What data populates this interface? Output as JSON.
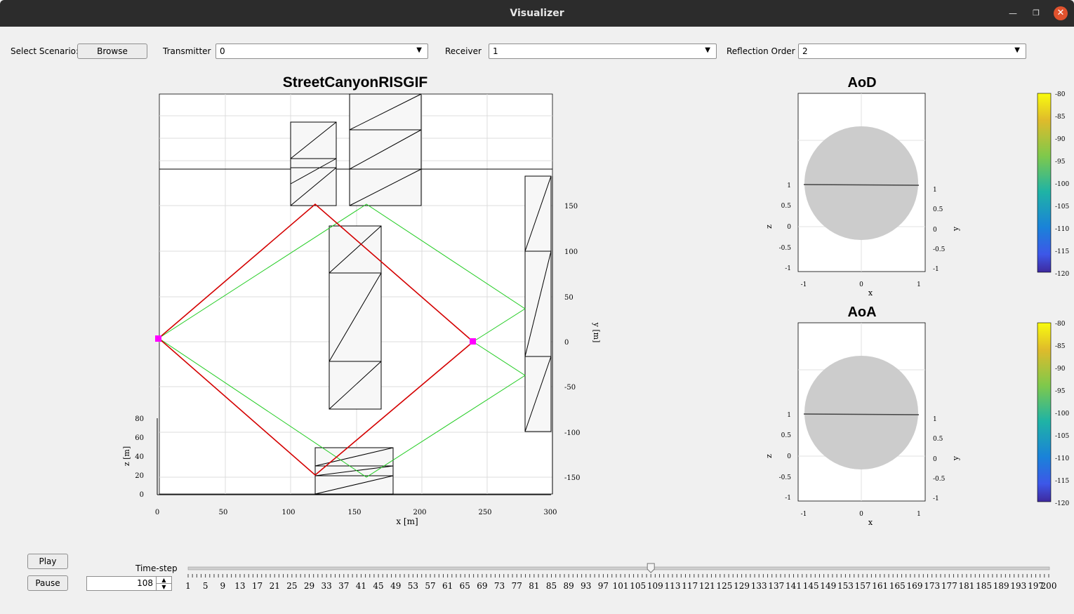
{
  "window": {
    "title": "Visualizer"
  },
  "toolbar": {
    "select_scenario_label": "Select Scenario:",
    "browse_label": "Browse",
    "transmitter_label": "Transmitter",
    "transmitter_value": "0",
    "receiver_label": "Receiver",
    "receiver_value": "1",
    "reflection_order_label": "Reflection Order",
    "reflection_order_value": "2"
  },
  "main_plot": {
    "title": "StreetCanyonRISGIF",
    "x_label": "x [m]",
    "y_label": "y [m]",
    "z_label": "z [m]",
    "x_ticks": [
      "0",
      "50",
      "100",
      "150",
      "200",
      "250",
      "300"
    ],
    "y_ticks": [
      "150",
      "100",
      "50",
      "0",
      "-50",
      "-100",
      "-150"
    ],
    "z_ticks": [
      "80",
      "60",
      "40",
      "20",
      "0"
    ],
    "path_colors": {
      "first_order": "#d40000",
      "second_order": "#22cc22",
      "nodes": "#ff00ff"
    }
  },
  "aod_plot": {
    "title": "AoD",
    "x_label": "x",
    "y_label": "y",
    "z_label": "z",
    "x_ticks": [
      "-1",
      "0",
      "1"
    ],
    "z_ticks": [
      "1",
      "0.5",
      "0",
      "-0.5",
      "-1"
    ],
    "y_ticks": [
      "1",
      "0.5",
      "0",
      "-0.5",
      "-1"
    ]
  },
  "aoa_plot": {
    "title": "AoA",
    "x_label": "x",
    "y_label": "y",
    "z_label": "z",
    "x_ticks": [
      "-1",
      "0",
      "1"
    ],
    "z_ticks": [
      "1",
      "0.5",
      "0",
      "-0.5",
      "-1"
    ],
    "y_ticks": [
      "1",
      "0.5",
      "0",
      "-0.5",
      "-1"
    ]
  },
  "colorbar": {
    "ticks": [
      "-80",
      "-85",
      "-90",
      "-95",
      "-100",
      "-105",
      "-110",
      "-115",
      "-120"
    ]
  },
  "playback": {
    "play_label": "Play",
    "pause_label": "Pause",
    "timestep_label": "Time-step",
    "timestep_value": "108",
    "slider_min": 1,
    "slider_max": 200,
    "slider_value": 108,
    "slider_labels": [
      "1",
      "5",
      "9",
      "13",
      "17",
      "21",
      "25",
      "29",
      "33",
      "37",
      "41",
      "45",
      "49",
      "53",
      "57",
      "61",
      "65",
      "69",
      "73",
      "77",
      "81",
      "85",
      "89",
      "93",
      "97",
      "101",
      "105",
      "109",
      "113",
      "117",
      "121",
      "125",
      "129",
      "133",
      "137",
      "141",
      "145",
      "149",
      "153",
      "157",
      "161",
      "165",
      "169",
      "173",
      "177",
      "181",
      "185",
      "189",
      "193",
      "197",
      "200"
    ]
  }
}
